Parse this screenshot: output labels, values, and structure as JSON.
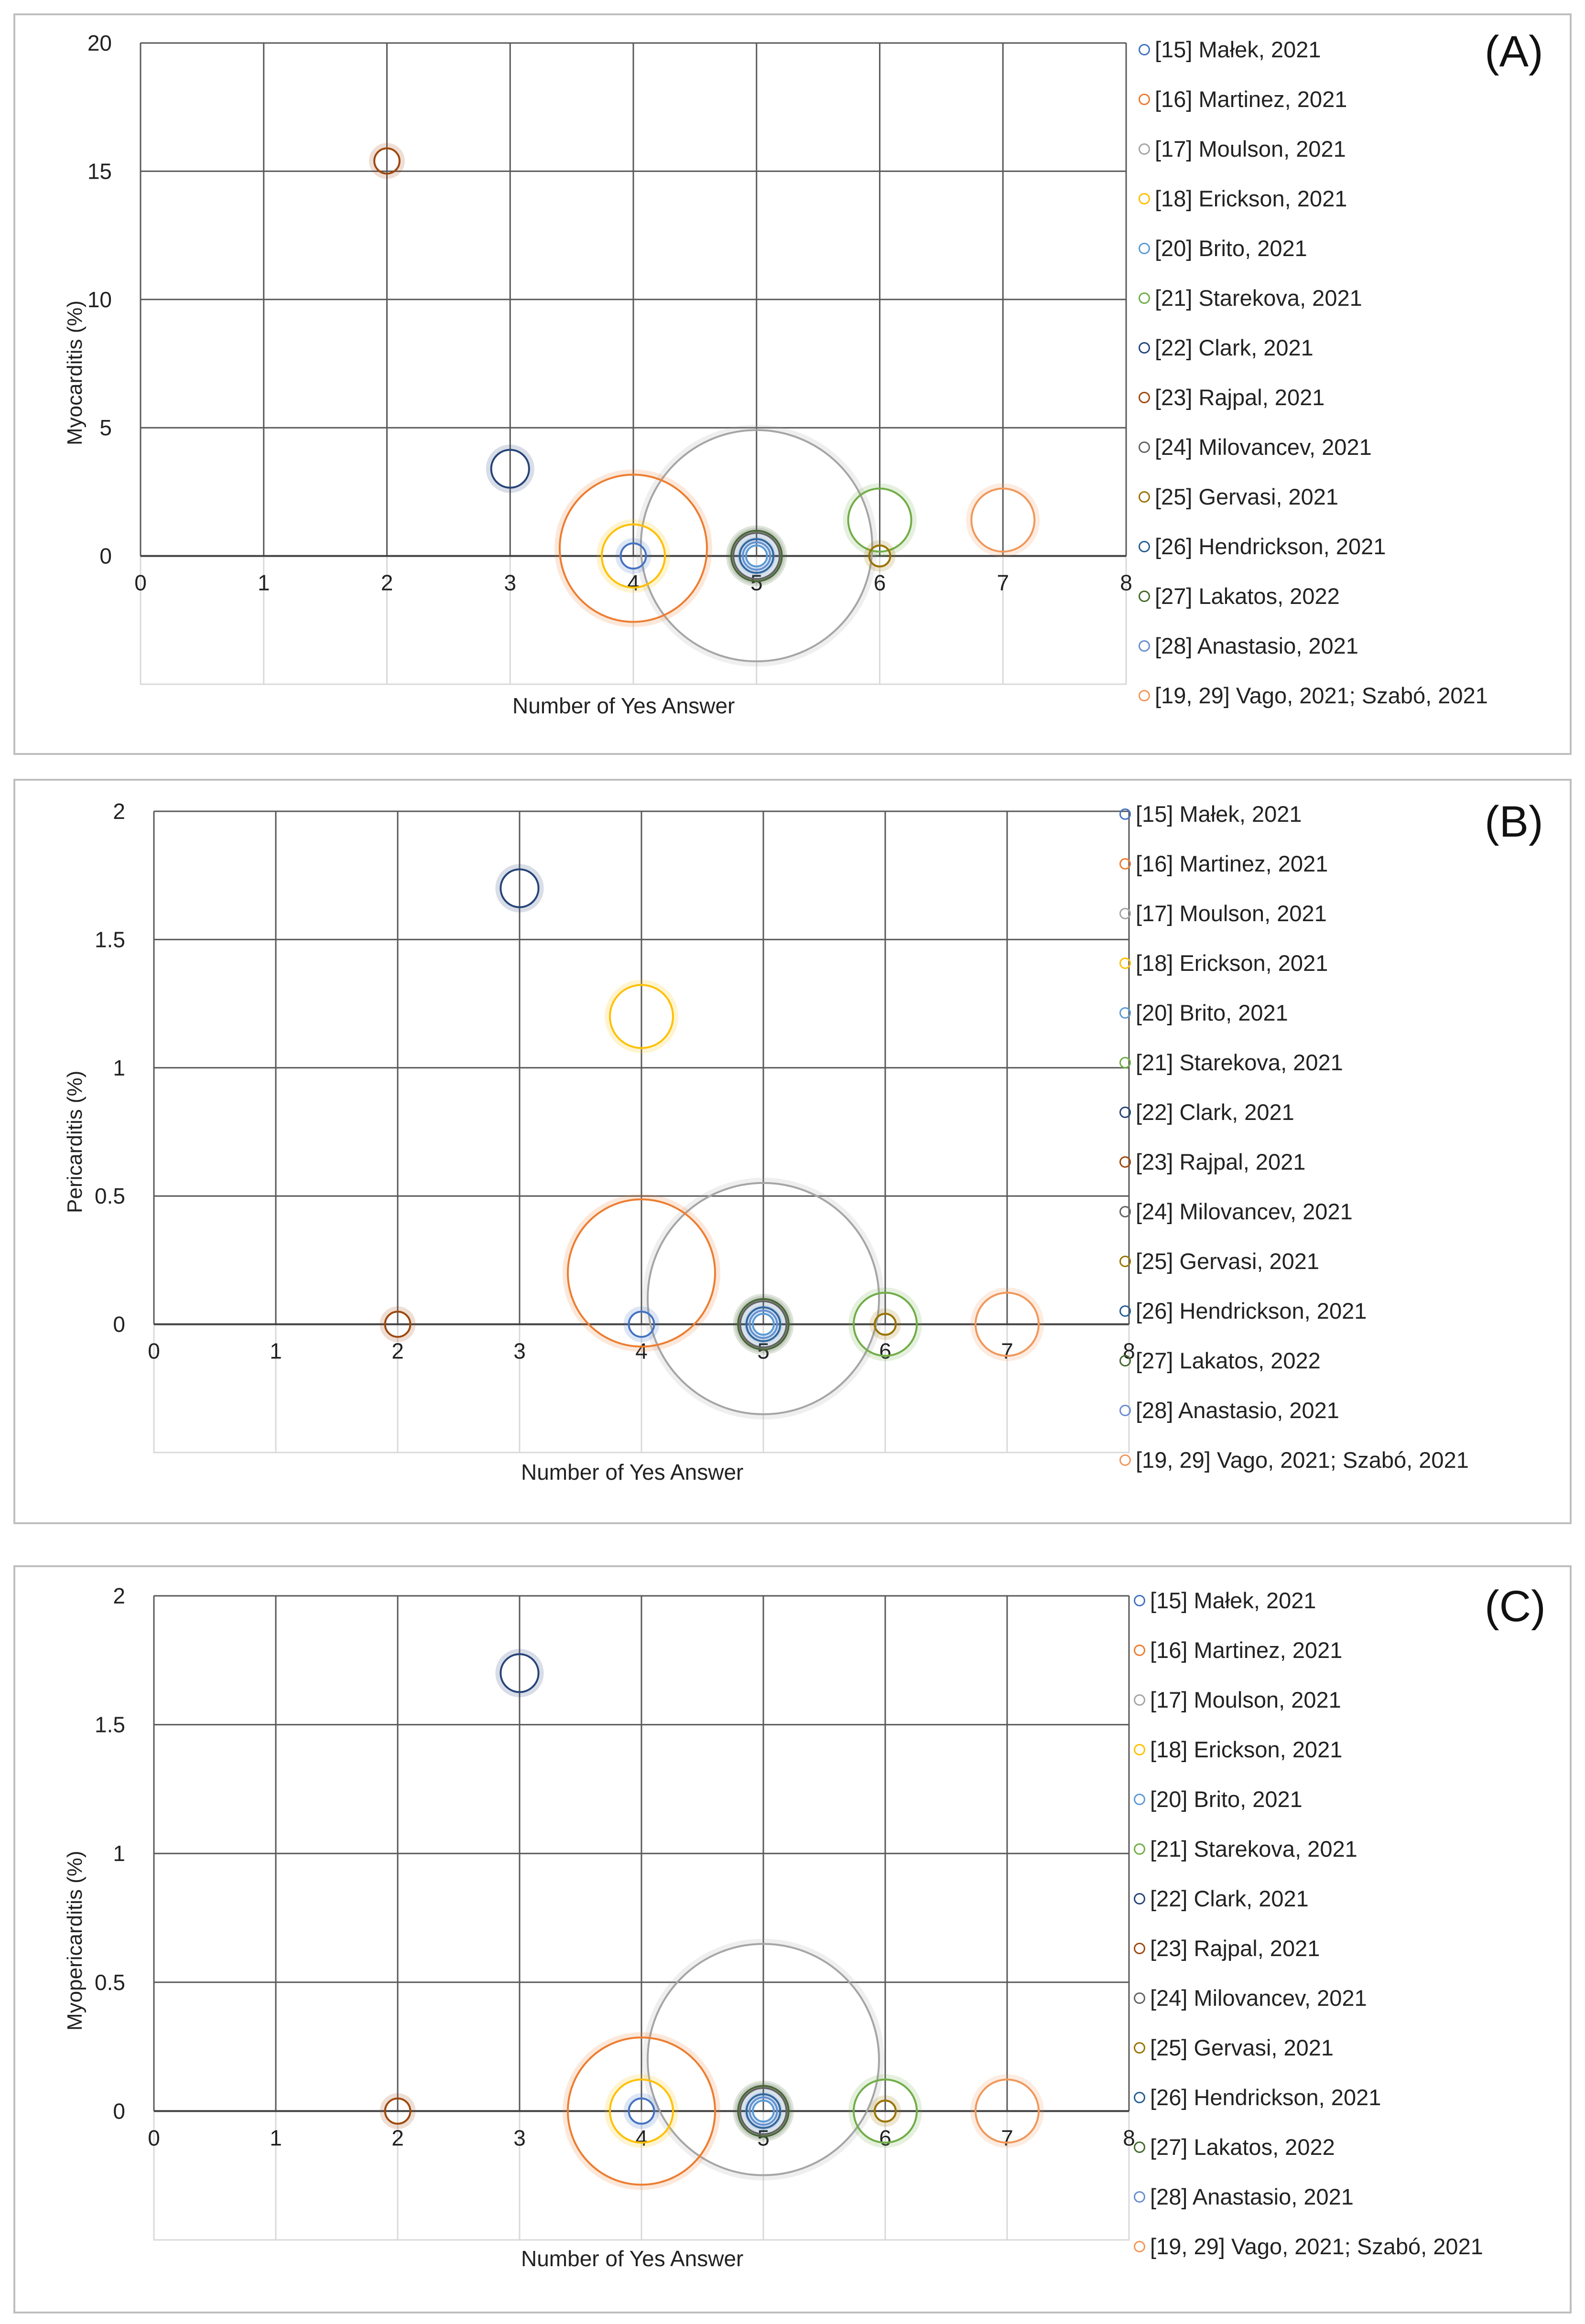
{
  "legend_series": [
    {
      "name": "[15] Małek, 2021",
      "color": "#4472C4"
    },
    {
      "name": "[16] Martinez, 2021",
      "color": "#ED7D31"
    },
    {
      "name": "[17] Moulson, 2021",
      "color": "#A5A5A5"
    },
    {
      "name": "[18] Erickson, 2021",
      "color": "#FFC000"
    },
    {
      "name": "[20] Brito, 2021",
      "color": "#5B9BD5"
    },
    {
      "name": "[21] Starekova, 2021",
      "color": "#70AD47"
    },
    {
      "name": "[22] Clark, 2021",
      "color": "#264478"
    },
    {
      "name": "[23] Rajpal, 2021",
      "color": "#9E480E"
    },
    {
      "name": "[24] Milovancev, 2021",
      "color": "#636363"
    },
    {
      "name": "[25] Gervasi, 2021",
      "color": "#997300"
    },
    {
      "name": "[26] Hendrickson, 2021",
      "color": "#255E91"
    },
    {
      "name": "[27] Lakatos, 2022",
      "color": "#43682B"
    },
    {
      "name": "[28] Anastasio, 2021",
      "color": "#698ED0"
    },
    {
      "name": "[19, 29] Vago, 2021; Szabó, 2021",
      "color": "#F1975A"
    }
  ],
  "chart_data": [
    {
      "type": "bubble",
      "panel_label": "(A)",
      "xlabel": "Number of Yes Answer",
      "ylabel": "Myocarditis (%)",
      "xlim": [
        0,
        8
      ],
      "ylim": [
        -5,
        20
      ],
      "x_ticks": [
        0,
        1,
        2,
        3,
        4,
        5,
        6,
        7,
        8
      ],
      "y_ticks": [
        0,
        5,
        10,
        15,
        20
      ],
      "legend_position": "right",
      "points": [
        {
          "series": "[15] Małek, 2021",
          "x": 4,
          "y": 0,
          "size": 1.2
        },
        {
          "series": "[16] Martinez, 2021",
          "x": 4,
          "y": 0.3,
          "size": 7
        },
        {
          "series": "[17] Moulson, 2021",
          "x": 5,
          "y": 0.4,
          "size": 11
        },
        {
          "series": "[18] Erickson, 2021",
          "x": 4,
          "y": 0,
          "size": 3
        },
        {
          "series": "[20] Brito, 2021",
          "x": 5,
          "y": 0,
          "size": 1
        },
        {
          "series": "[21] Starekova, 2021",
          "x": 6,
          "y": 1.4,
          "size": 3
        },
        {
          "series": "[22] Clark, 2021",
          "x": 3,
          "y": 3.4,
          "size": 1.8
        },
        {
          "series": "[23] Rajpal, 2021",
          "x": 2,
          "y": 15.4,
          "size": 1.2
        },
        {
          "series": "[24] Milovancev, 2021",
          "x": 5,
          "y": 0,
          "size": 2.2
        },
        {
          "series": "[25] Gervasi, 2021",
          "x": 6,
          "y": 0,
          "size": 1
        },
        {
          "series": "[26] Hendrickson, 2021",
          "x": 5,
          "y": 0,
          "size": 1.6
        },
        {
          "series": "[27] Lakatos, 2022",
          "x": 5,
          "y": 0,
          "size": 2.4
        },
        {
          "series": "[28] Anastasio, 2021",
          "x": 5,
          "y": 0,
          "size": 1.3
        },
        {
          "series": "[19, 29] Vago, 2021; Szabó, 2021",
          "x": 7,
          "y": 1.4,
          "size": 3
        }
      ]
    },
    {
      "type": "bubble",
      "panel_label": "(B)",
      "xlabel": "Number of Yes Answer",
      "ylabel": "Pericarditis (%)",
      "xlim": [
        0,
        8
      ],
      "ylim": [
        -0.5,
        2
      ],
      "x_ticks": [
        0,
        1,
        2,
        3,
        4,
        5,
        6,
        7,
        8
      ],
      "y_ticks": [
        0,
        0.5,
        1,
        1.5,
        2
      ],
      "legend_position": "right",
      "points": [
        {
          "series": "[15] Małek, 2021",
          "x": 4,
          "y": 0,
          "size": 1.2
        },
        {
          "series": "[16] Martinez, 2021",
          "x": 4,
          "y": 0.2,
          "size": 7
        },
        {
          "series": "[17] Moulson, 2021",
          "x": 5,
          "y": 0.1,
          "size": 11
        },
        {
          "series": "[18] Erickson, 2021",
          "x": 4,
          "y": 1.2,
          "size": 3
        },
        {
          "series": "[20] Brito, 2021",
          "x": 5,
          "y": 0,
          "size": 1
        },
        {
          "series": "[21] Starekova, 2021",
          "x": 6,
          "y": 0,
          "size": 3
        },
        {
          "series": "[22] Clark, 2021",
          "x": 3,
          "y": 1.7,
          "size": 1.8
        },
        {
          "series": "[23] Rajpal, 2021",
          "x": 2,
          "y": 0,
          "size": 1.2
        },
        {
          "series": "[24] Milovancev, 2021",
          "x": 5,
          "y": 0,
          "size": 2.2
        },
        {
          "series": "[25] Gervasi, 2021",
          "x": 6,
          "y": 0,
          "size": 1
        },
        {
          "series": "[26] Hendrickson, 2021",
          "x": 5,
          "y": 0,
          "size": 1.6
        },
        {
          "series": "[27] Lakatos, 2022",
          "x": 5,
          "y": 0,
          "size": 2.4
        },
        {
          "series": "[28] Anastasio, 2021",
          "x": 5,
          "y": 0,
          "size": 1.3
        },
        {
          "series": "[19, 29] Vago, 2021; Szabó, 2021",
          "x": 7,
          "y": 0,
          "size": 3
        }
      ]
    },
    {
      "type": "bubble",
      "panel_label": "(C)",
      "xlabel": "Number of Yes Answer",
      "ylabel": "Myopericarditis (%)",
      "xlim": [
        0,
        8
      ],
      "ylim": [
        -0.5,
        2
      ],
      "x_ticks": [
        0,
        1,
        2,
        3,
        4,
        5,
        6,
        7,
        8
      ],
      "y_ticks": [
        0,
        0.5,
        1,
        1.5,
        2
      ],
      "legend_position": "right",
      "points": [
        {
          "series": "[15] Małek, 2021",
          "x": 4,
          "y": 0,
          "size": 1.2
        },
        {
          "series": "[16] Martinez, 2021",
          "x": 4,
          "y": 0,
          "size": 7
        },
        {
          "series": "[17] Moulson, 2021",
          "x": 5,
          "y": 0.2,
          "size": 11
        },
        {
          "series": "[18] Erickson, 2021",
          "x": 4,
          "y": 0,
          "size": 3
        },
        {
          "series": "[20] Brito, 2021",
          "x": 5,
          "y": 0,
          "size": 1
        },
        {
          "series": "[21] Starekova, 2021",
          "x": 6,
          "y": 0,
          "size": 3
        },
        {
          "series": "[22] Clark, 2021",
          "x": 3,
          "y": 1.7,
          "size": 1.8
        },
        {
          "series": "[23] Rajpal, 2021",
          "x": 2,
          "y": 0,
          "size": 1.2
        },
        {
          "series": "[24] Milovancev, 2021",
          "x": 5,
          "y": 0,
          "size": 2.2
        },
        {
          "series": "[25] Gervasi, 2021",
          "x": 6,
          "y": 0,
          "size": 1
        },
        {
          "series": "[26] Hendrickson, 2021",
          "x": 5,
          "y": 0,
          "size": 1.6
        },
        {
          "series": "[27] Lakatos, 2022",
          "x": 5,
          "y": 0,
          "size": 2.4
        },
        {
          "series": "[28] Anastasio, 2021",
          "x": 5,
          "y": 0,
          "size": 1.3
        },
        {
          "series": "[19, 29] Vago, 2021; Szabó, 2021",
          "x": 7,
          "y": 0,
          "size": 3
        }
      ]
    }
  ]
}
